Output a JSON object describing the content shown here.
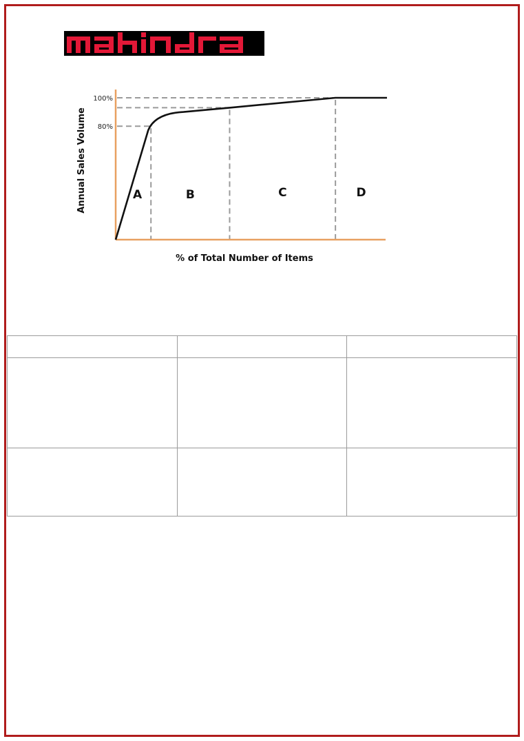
{
  "brand": {
    "logo_text": "Mahindra",
    "logo_color": "#e31837",
    "border_color": "#b01c1c"
  },
  "chart_data": {
    "type": "line",
    "title": "",
    "xlabel": "% of Total Number of Items",
    "ylabel": "Annual Sales Volume",
    "y_ticks": [
      "100%",
      "80%"
    ],
    "ylim": [
      0,
      100
    ],
    "series": [
      {
        "values": [
          0,
          80,
          90,
          93,
          100,
          100
        ]
      }
    ],
    "curve_x_fraction": [
      0,
      0.13,
      0.25,
      0.42,
      0.81,
      1.0
    ],
    "regions": [
      "A",
      "B",
      "C",
      "D"
    ],
    "region_boundaries_x_fraction": [
      0.13,
      0.42,
      0.81
    ],
    "reference_levels_y": [
      80,
      93,
      100
    ],
    "axis_color": "#e8a060",
    "curve_color": "#111111",
    "guide_color": "#9a9a9a"
  },
  "table": {
    "rows": 3,
    "columns": 3
  }
}
